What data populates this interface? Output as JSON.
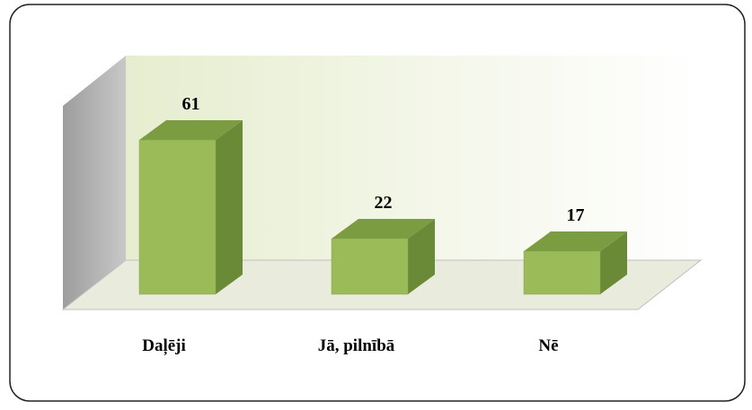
{
  "chart_data": {
    "type": "bar",
    "categories": [
      "Daļēji",
      "Jā, pilnībā",
      "Nē"
    ],
    "values": [
      61,
      22,
      17
    ],
    "color": "#9bbb59"
  }
}
